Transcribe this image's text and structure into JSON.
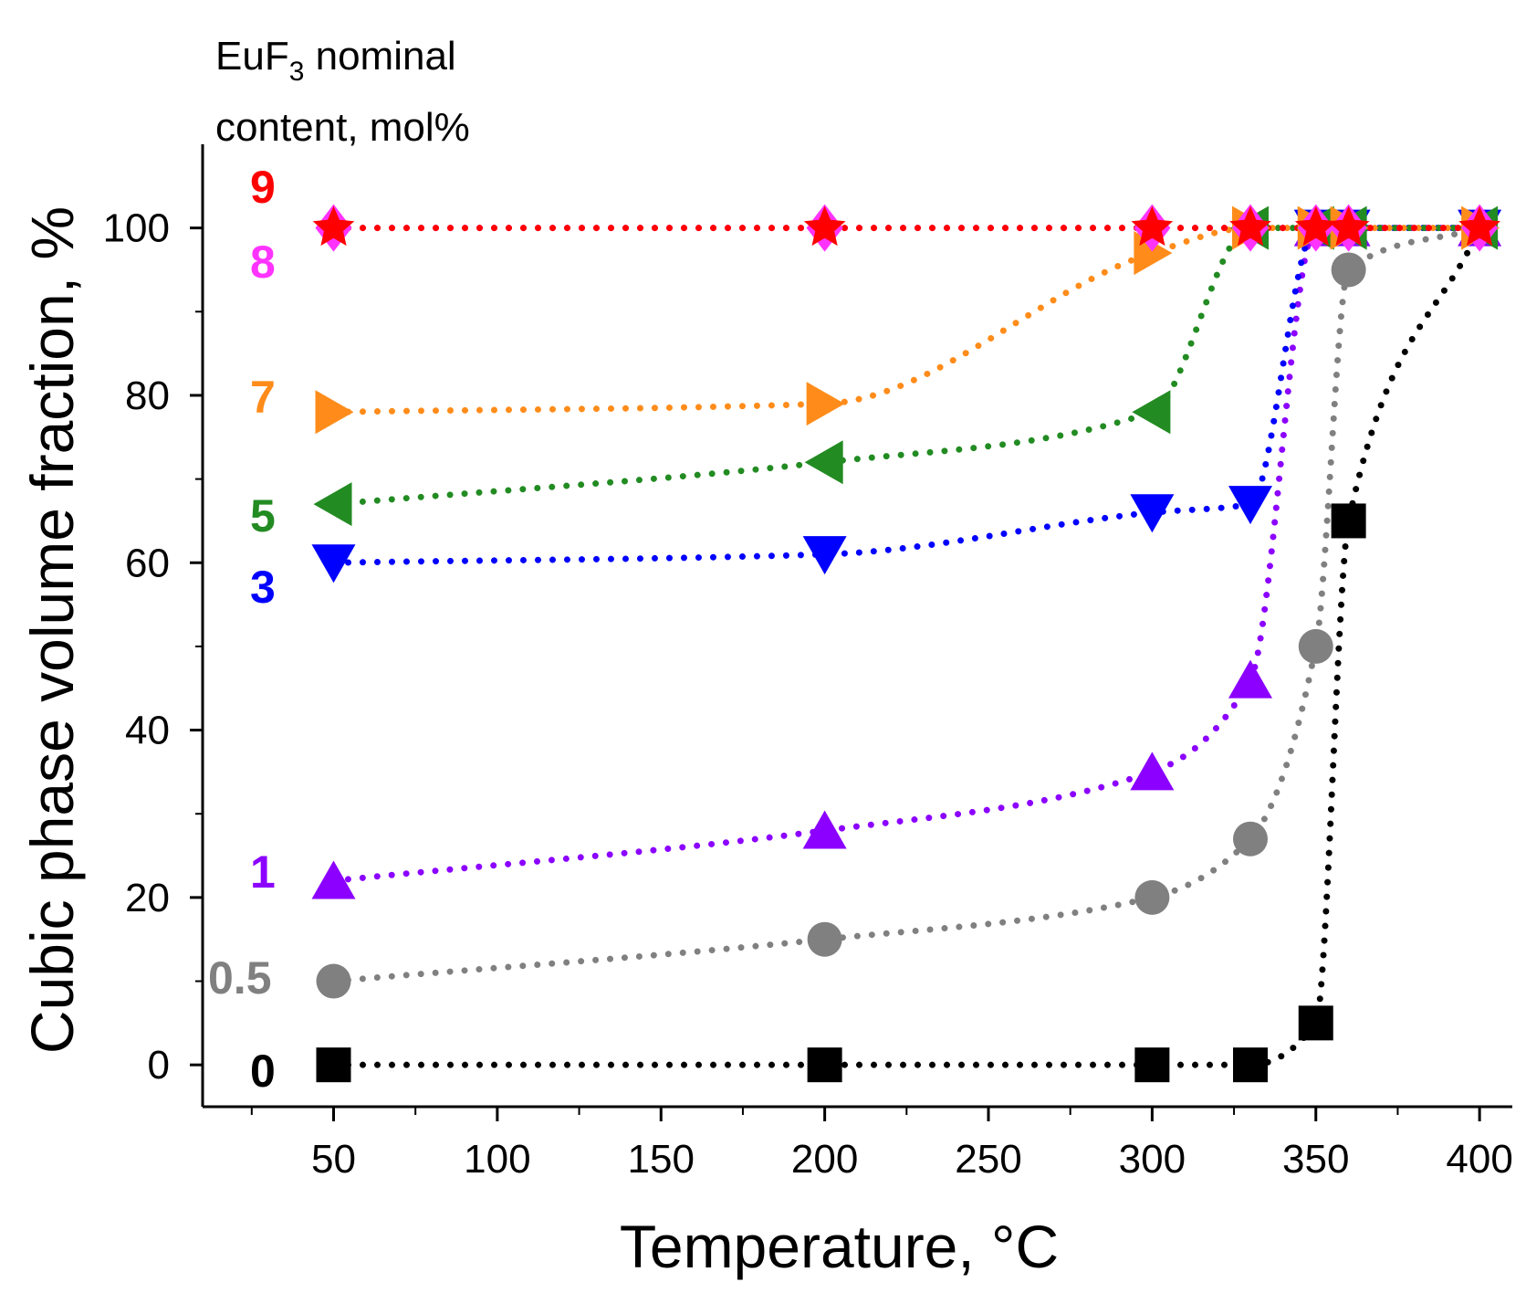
{
  "chart_data": {
    "type": "line",
    "xlabel": "Temperature, °C",
    "ylabel": "Cubic phase volume fraction, %",
    "xlim": [
      10,
      410
    ],
    "ylim": [
      -5,
      110
    ],
    "xticks": [
      50,
      100,
      150,
      200,
      250,
      300,
      350,
      400
    ],
    "yticks": [
      0,
      20,
      40,
      60,
      80,
      100
    ],
    "grid": false,
    "legend_title": {
      "prefix": "EuF",
      "subscript": "3",
      "suffix": " nominal",
      "line2": "content, mol%"
    },
    "series": [
      {
        "name": "0",
        "color": "#000000",
        "marker": "square",
        "x": [
          50,
          200,
          300,
          330,
          350,
          360,
          400
        ],
        "y": [
          0,
          0,
          0,
          0,
          5,
          65,
          100
        ]
      },
      {
        "name": "0.5",
        "color": "#808080",
        "marker": "circle",
        "x": [
          50,
          200,
          300,
          330,
          350,
          360,
          400
        ],
        "y": [
          10,
          15,
          20,
          27,
          50,
          95,
          100
        ]
      },
      {
        "name": "1",
        "color": "#8B00FF",
        "marker": "triangle-up",
        "x": [
          50,
          200,
          300,
          330,
          350,
          360,
          400
        ],
        "y": [
          22,
          28,
          35,
          46,
          100,
          100,
          100
        ]
      },
      {
        "name": "3",
        "color": "#0000FF",
        "marker": "triangle-down",
        "x": [
          50,
          200,
          300,
          330,
          350,
          360,
          400
        ],
        "y": [
          60,
          61,
          66,
          67,
          100,
          100,
          100
        ]
      },
      {
        "name": "5",
        "color": "#228B22",
        "marker": "triangle-left",
        "x": [
          50,
          200,
          300,
          330,
          350,
          360,
          400
        ],
        "y": [
          67,
          72,
          78,
          100,
          100,
          100,
          100
        ]
      },
      {
        "name": "7",
        "color": "#FF8C1A",
        "marker": "triangle-right",
        "x": [
          50,
          200,
          300,
          330,
          350,
          360,
          400
        ],
        "y": [
          78,
          79,
          97,
          100,
          100,
          100,
          100
        ]
      },
      {
        "name": "8",
        "color": "#FF33FF",
        "marker": "diamond",
        "x": [
          50,
          200,
          300,
          330,
          350,
          360,
          400
        ],
        "y": [
          100,
          100,
          100,
          100,
          100,
          100,
          100
        ]
      },
      {
        "name": "9",
        "color": "#FF0000",
        "marker": "star",
        "x": [
          50,
          200,
          300,
          330,
          350,
          360,
          400
        ],
        "y": [
          100,
          100,
          100,
          100,
          100,
          100,
          100
        ]
      }
    ]
  }
}
